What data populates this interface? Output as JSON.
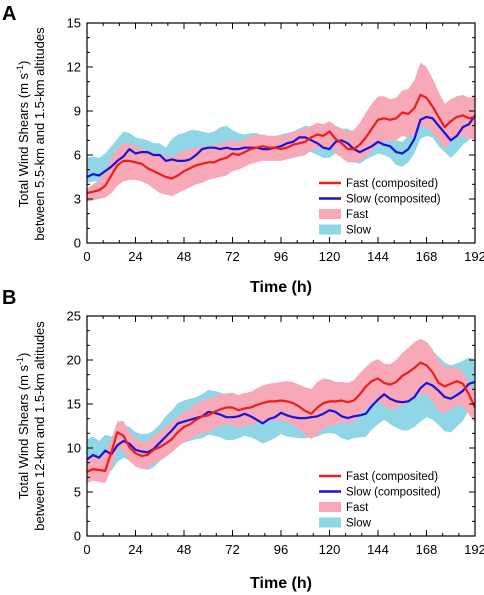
{
  "chart_data": [
    {
      "type": "line",
      "panel_label": "A",
      "xlabel": "Time (h)",
      "ylabel_line1": "Total Wind Shears (m s",
      "ylabel_sup": "-1",
      "ylabel_line1_end": ")",
      "ylabel_line2": "between 5.5-km and 1.5-km altitudes",
      "xlim": [
        0,
        192
      ],
      "ylim": [
        0,
        15
      ],
      "xticks": [
        0,
        24,
        48,
        72,
        96,
        120,
        144,
        168,
        192
      ],
      "yticks": [
        0,
        3,
        6,
        9,
        12,
        15
      ],
      "x": [
        0,
        3,
        6,
        9,
        12,
        15,
        18,
        21,
        24,
        27,
        30,
        33,
        36,
        39,
        42,
        45,
        48,
        51,
        54,
        57,
        60,
        63,
        66,
        69,
        72,
        75,
        78,
        81,
        84,
        87,
        90,
        93,
        96,
        99,
        102,
        105,
        108,
        111,
        114,
        117,
        120,
        123,
        126,
        129,
        132,
        135,
        138,
        141,
        144,
        147,
        150,
        153,
        156,
        159,
        162,
        165,
        168,
        171,
        174,
        177,
        180,
        183,
        186,
        189,
        192
      ],
      "series": [
        {
          "name": "Fast (composited)",
          "color": "#ee1c1c",
          "values": [
            3.4,
            3.5,
            3.6,
            3.9,
            4.6,
            5.3,
            5.6,
            5.6,
            5.5,
            5.4,
            5.1,
            4.9,
            4.7,
            4.5,
            4.4,
            4.6,
            4.9,
            5.1,
            5.3,
            5.4,
            5.5,
            5.5,
            5.7,
            5.8,
            6.1,
            6.0,
            6.2,
            6.4,
            6.5,
            6.6,
            6.5,
            6.5,
            6.4,
            6.5,
            6.7,
            6.8,
            6.9,
            7.2,
            7.4,
            7.3,
            7.6,
            7.1,
            6.8,
            6.4,
            6.4,
            6.7,
            7.2,
            7.8,
            8.4,
            8.5,
            8.4,
            8.5,
            8.9,
            8.8,
            9.2,
            10.1,
            9.9,
            9.3,
            8.6,
            7.9,
            8.3,
            8.6,
            8.7,
            8.5,
            8.6
          ]
        },
        {
          "name": "Slow (composited)",
          "color": "#1515d8",
          "values": [
            4.5,
            4.7,
            4.6,
            4.9,
            5.2,
            5.6,
            5.9,
            6.4,
            6.1,
            6.2,
            6.2,
            6.0,
            6.0,
            5.6,
            5.7,
            5.6,
            5.6,
            5.7,
            6.0,
            6.4,
            6.5,
            6.5,
            6.4,
            6.5,
            6.4,
            6.4,
            6.5,
            6.5,
            6.5,
            6.4,
            6.4,
            6.5,
            6.6,
            6.8,
            6.9,
            7.2,
            7.2,
            7.0,
            6.8,
            6.5,
            6.4,
            6.9,
            7.0,
            6.8,
            6.4,
            6.2,
            6.4,
            6.6,
            6.9,
            6.7,
            6.6,
            6.2,
            6.1,
            6.4,
            7.1,
            8.4,
            8.6,
            8.5,
            8.0,
            7.5,
            7.0,
            7.3,
            7.9,
            8.1,
            8.7
          ]
        },
        {
          "name": "Fast",
          "color": "#f8a9b8",
          "upper": [
            3.7,
            4.0,
            4.3,
            4.8,
            5.8,
            6.5,
            6.8,
            6.8,
            6.6,
            6.5,
            6.3,
            6.2,
            6.1,
            5.9,
            5.9,
            6.1,
            6.3,
            6.4,
            6.5,
            6.6,
            6.6,
            6.7,
            6.8,
            6.9,
            7.0,
            6.9,
            7.1,
            7.3,
            7.4,
            7.4,
            7.3,
            7.3,
            7.3,
            7.4,
            7.6,
            7.7,
            7.8,
            8.0,
            8.2,
            8.1,
            8.3,
            8.0,
            7.8,
            7.6,
            7.7,
            8.2,
            8.9,
            9.5,
            10.0,
            10.0,
            9.8,
            9.9,
            10.4,
            10.5,
            11.1,
            12.3,
            12.0,
            11.2,
            10.3,
            9.5,
            9.8,
            10.0,
            10.1,
            9.9,
            10.0
          ],
          "lower": [
            2.8,
            2.9,
            3.0,
            3.1,
            3.4,
            3.9,
            4.2,
            4.3,
            4.3,
            4.2,
            4.0,
            3.7,
            3.4,
            3.3,
            3.2,
            3.4,
            3.6,
            3.8,
            4.0,
            4.1,
            4.3,
            4.4,
            4.5,
            4.6,
            4.9,
            5.0,
            5.2,
            5.4,
            5.5,
            5.6,
            5.6,
            5.6,
            5.6,
            5.7,
            5.8,
            5.9,
            6.0,
            6.3,
            6.5,
            6.4,
            6.6,
            6.1,
            5.8,
            5.5,
            5.5,
            5.6,
            5.9,
            6.3,
            6.7,
            6.9,
            6.9,
            7.0,
            7.3,
            7.2,
            7.4,
            8.0,
            7.9,
            7.5,
            7.0,
            6.4,
            6.9,
            7.2,
            7.3,
            7.1,
            7.1
          ]
        },
        {
          "name": "Slow",
          "color": "#8fd6e6",
          "upper": [
            5.8,
            5.9,
            5.8,
            6.1,
            6.6,
            7.1,
            7.6,
            7.5,
            7.2,
            7.1,
            7.0,
            6.8,
            6.8,
            6.5,
            7.1,
            7.4,
            7.5,
            7.7,
            7.7,
            7.6,
            7.5,
            7.6,
            7.9,
            8.0,
            7.7,
            7.5,
            7.4,
            7.5,
            7.5,
            7.3,
            7.2,
            7.3,
            7.4,
            7.5,
            7.6,
            7.8,
            8.0,
            7.9,
            7.7,
            7.4,
            7.2,
            7.6,
            7.8,
            7.8,
            7.5,
            7.0,
            7.0,
            7.2,
            7.4,
            7.3,
            7.2,
            7.0,
            6.9,
            7.3,
            8.3,
            9.3,
            9.6,
            9.4,
            9.0,
            8.6,
            8.2,
            8.3,
            8.6,
            8.8,
            9.0
          ],
          "lower": [
            4.1,
            4.2,
            4.2,
            4.3,
            4.4,
            4.8,
            5.1,
            5.5,
            5.4,
            5.3,
            5.2,
            5.0,
            4.9,
            4.6,
            4.5,
            4.6,
            4.7,
            4.9,
            5.2,
            5.5,
            5.7,
            5.8,
            5.6,
            5.6,
            5.6,
            5.7,
            5.8,
            5.8,
            5.8,
            5.7,
            5.7,
            5.8,
            5.9,
            6.0,
            6.1,
            6.4,
            6.5,
            6.2,
            6.0,
            5.8,
            5.8,
            6.1,
            6.2,
            5.9,
            5.5,
            5.4,
            5.7,
            5.9,
            6.1,
            6.0,
            5.8,
            5.3,
            5.2,
            5.5,
            6.1,
            7.1,
            7.3,
            7.2,
            6.6,
            6.2,
            5.8,
            6.2,
            6.7,
            7.0,
            7.8
          ]
        }
      ],
      "legend_position": "lower-right"
    },
    {
      "type": "line",
      "panel_label": "B",
      "xlabel": "Time (h)",
      "ylabel_line1": "Total Wind Shears (m s",
      "ylabel_sup": "-1",
      "ylabel_line1_end": ")",
      "ylabel_line2": "between 12-km and 1.5-km altitudes",
      "xlim": [
        0,
        192
      ],
      "ylim": [
        0,
        25
      ],
      "xticks": [
        0,
        24,
        48,
        72,
        96,
        120,
        144,
        168,
        192
      ],
      "yticks": [
        0,
        5,
        10,
        15,
        20,
        25
      ],
      "x": [
        0,
        3,
        6,
        9,
        12,
        15,
        18,
        21,
        24,
        27,
        30,
        33,
        36,
        39,
        42,
        45,
        48,
        51,
        54,
        57,
        60,
        63,
        66,
        69,
        72,
        75,
        78,
        81,
        84,
        87,
        90,
        93,
        96,
        99,
        102,
        105,
        108,
        111,
        114,
        117,
        120,
        123,
        126,
        129,
        132,
        135,
        138,
        141,
        144,
        147,
        150,
        153,
        156,
        159,
        162,
        165,
        168,
        171,
        174,
        177,
        180,
        183,
        186,
        189,
        192
      ],
      "series": [
        {
          "name": "Fast (composited)",
          "color": "#ee1c1c",
          "values": [
            7.3,
            7.6,
            7.5,
            7.4,
            9.5,
            11.8,
            11.4,
            10.1,
            9.4,
            9.1,
            9.2,
            9.8,
            10.1,
            10.5,
            11.0,
            11.8,
            12.4,
            12.7,
            13.2,
            13.6,
            13.7,
            14.1,
            14.4,
            14.6,
            14.6,
            14.3,
            14.5,
            14.6,
            14.9,
            15.1,
            15.3,
            15.3,
            15.4,
            15.3,
            15.1,
            14.7,
            14.2,
            13.9,
            14.6,
            15.1,
            15.3,
            15.3,
            15.4,
            15.2,
            15.4,
            16.1,
            17.0,
            17.6,
            17.9,
            17.4,
            17.2,
            17.5,
            18.2,
            18.6,
            19.1,
            19.7,
            19.4,
            18.6,
            17.4,
            17.0,
            17.3,
            17.6,
            17.3,
            16.1,
            14.6
          ]
        },
        {
          "name": "Slow (composited)",
          "color": "#1515d8",
          "values": [
            8.7,
            9.2,
            8.9,
            9.7,
            9.3,
            10.3,
            10.8,
            10.5,
            9.8,
            9.6,
            9.5,
            9.9,
            10.6,
            11.3,
            12.0,
            12.8,
            13.0,
            13.2,
            13.4,
            13.6,
            14.1,
            14.0,
            13.8,
            13.5,
            13.5,
            13.6,
            13.9,
            13.6,
            13.2,
            12.8,
            13.3,
            13.5,
            14.0,
            13.7,
            13.5,
            13.4,
            13.4,
            13.5,
            13.6,
            13.9,
            14.3,
            14.1,
            13.6,
            13.4,
            13.6,
            13.7,
            13.9,
            14.8,
            15.5,
            16.1,
            15.6,
            15.3,
            15.2,
            15.3,
            15.8,
            16.8,
            17.4,
            17.1,
            16.5,
            15.8,
            15.6,
            16.0,
            16.5,
            17.3,
            17.5
          ]
        },
        {
          "name": "Fast",
          "color": "#f8a9b8",
          "upper": [
            8.8,
            9.0,
            9.1,
            9.4,
            11.0,
            13.0,
            13.1,
            11.8,
            11.1,
            10.7,
            10.8,
            11.4,
            11.9,
            12.4,
            13.0,
            13.6,
            14.1,
            14.5,
            15.0,
            15.4,
            15.6,
            15.9,
            16.1,
            16.2,
            16.3,
            16.0,
            16.2,
            16.4,
            16.8,
            17.1,
            17.3,
            17.4,
            17.5,
            17.6,
            17.5,
            17.2,
            16.9,
            16.7,
            17.5,
            17.9,
            17.8,
            17.5,
            17.5,
            17.4,
            17.7,
            18.5,
            19.2,
            19.8,
            20.1,
            19.6,
            19.5,
            20.0,
            20.8,
            21.4,
            22.0,
            22.4,
            22.1,
            21.2,
            19.9,
            19.2,
            19.2,
            19.1,
            18.7,
            17.5,
            16.4
          ],
          "lower": [
            6.0,
            6.3,
            6.1,
            6.0,
            7.6,
            9.9,
            9.7,
            8.5,
            7.9,
            7.6,
            7.7,
            8.3,
            8.6,
            9.0,
            9.5,
            10.1,
            10.7,
            11.0,
            11.4,
            11.7,
            11.8,
            12.2,
            12.5,
            12.7,
            12.6,
            12.3,
            12.5,
            12.6,
            12.8,
            13.0,
            13.1,
            13.1,
            13.1,
            12.9,
            12.6,
            12.1,
            11.5,
            11.0,
            11.6,
            12.2,
            12.5,
            12.7,
            12.9,
            12.8,
            13.0,
            13.6,
            14.4,
            15.0,
            15.3,
            14.8,
            14.4,
            14.5,
            14.9,
            15.2,
            15.7,
            16.2,
            16.0,
            15.3,
            14.3,
            13.9,
            14.4,
            14.8,
            14.8,
            13.8,
            12.9
          ]
        },
        {
          "name": "Slow",
          "color": "#8fd6e6",
          "upper": [
            11.0,
            11.3,
            10.8,
            11.5,
            11.3,
            12.0,
            12.6,
            12.4,
            11.8,
            11.6,
            11.6,
            12.0,
            12.7,
            13.6,
            14.3,
            15.1,
            15.4,
            15.6,
            15.8,
            16.1,
            16.6,
            16.5,
            16.3,
            16.1,
            16.0,
            16.0,
            16.3,
            15.9,
            15.5,
            15.1,
            15.6,
            15.8,
            16.3,
            16.0,
            15.7,
            15.6,
            15.6,
            15.7,
            15.9,
            16.3,
            16.9,
            16.6,
            16.1,
            15.9,
            16.1,
            16.3,
            16.6,
            17.5,
            18.3,
            19.0,
            18.5,
            18.3,
            18.4,
            18.6,
            19.2,
            20.6,
            21.3,
            21.0,
            20.4,
            19.7,
            19.4,
            19.6,
            19.9,
            20.3,
            20.0
          ],
          "lower": [
            6.3,
            6.8,
            6.8,
            7.8,
            7.4,
            8.4,
            8.9,
            8.6,
            8.0,
            7.7,
            7.5,
            7.8,
            8.5,
            9.0,
            9.7,
            10.4,
            10.6,
            10.8,
            11.0,
            11.1,
            11.5,
            11.4,
            11.2,
            10.9,
            10.9,
            11.1,
            11.4,
            11.2,
            10.9,
            10.5,
            10.8,
            11.1,
            11.6,
            11.3,
            11.2,
            11.1,
            11.1,
            11.2,
            11.3,
            11.6,
            11.7,
            11.6,
            11.1,
            10.9,
            11.1,
            11.2,
            11.3,
            12.1,
            12.7,
            13.2,
            12.7,
            12.3,
            12.0,
            12.0,
            12.4,
            13.0,
            13.5,
            13.2,
            12.6,
            11.9,
            11.8,
            12.4,
            13.1,
            14.3,
            15.0
          ]
        }
      ],
      "legend_position": "lower-right"
    }
  ]
}
